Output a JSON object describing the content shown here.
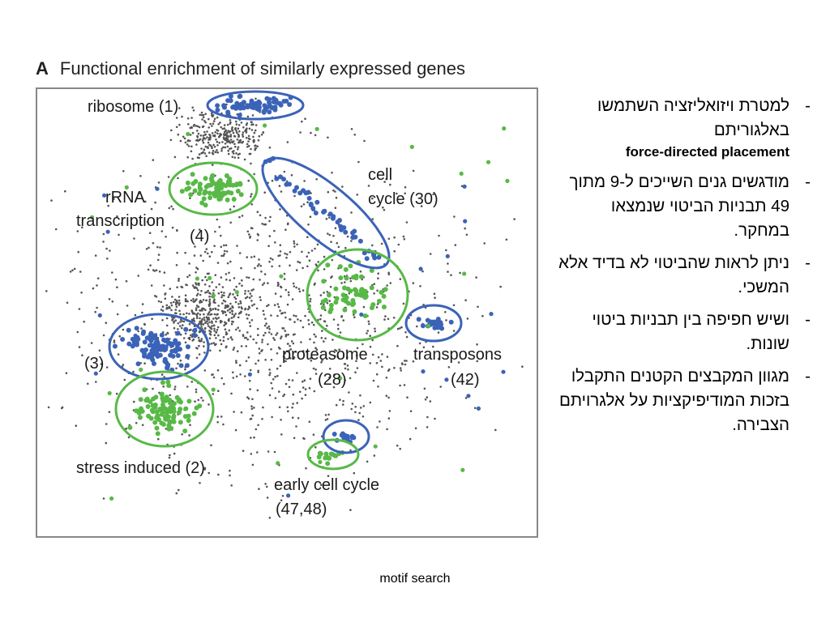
{
  "figure": {
    "panel_letter": "A",
    "title": "Functional enrichment of similarly expressed genes",
    "labels": {
      "ribosome": "ribosome (1)",
      "rrna_line1": "rRNA",
      "rrna_line2": "transcription",
      "rrna_line3": "(4)",
      "cell_line1": "cell",
      "cell_line2": "cycle (30)",
      "cluster3": "(3)",
      "proteasome_line1": "proteasome",
      "proteasome_line2": "(28)",
      "transposons_line1": "transposons",
      "transposons_line2": "(42)",
      "stress": "stress induced (2)",
      "early_line1": "early cell cycle",
      "early_line2": "(47,48)"
    },
    "colors": {
      "background_dots": "#555555",
      "blue": "#3b63b8",
      "green": "#58b947",
      "frame": "#888888"
    }
  },
  "bullets": [
    {
      "dash": "-",
      "text": "למטרת ויזואליזציה השתמשו באלגוריתם",
      "english": "force-directed  placement"
    },
    {
      "dash": "-",
      "text": "מודגשים גנים השייכים ל-9 מתוך 49 תבניות הביטוי שנמצאו במחקר."
    },
    {
      "dash": "-",
      "text": "ניתן לראות שהביטוי לא בדיד אלא המשכי."
    },
    {
      "dash": "-",
      "text": "ושיש חפיפה בין תבניות ביטוי שונות."
    },
    {
      "dash": "-",
      "text": "מגוון המקבצים הקטנים התקבלו בזכות המודיפיקציות על אלגרויתם הצבירה."
    }
  ],
  "caption": "motif search"
}
